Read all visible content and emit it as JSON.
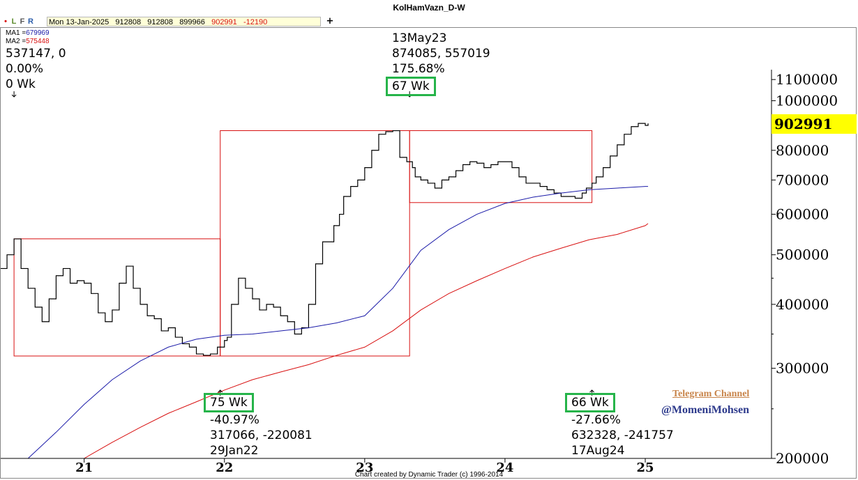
{
  "window": {
    "title": "KolHamVazn_D-W"
  },
  "toolbar": {
    "dot": "•",
    "l": "L",
    "f": "F",
    "r": "R",
    "plus": "+"
  },
  "info_bar": {
    "date": "Mon 13-Jan-2025",
    "open": "912808",
    "high": "912808",
    "low": "899966",
    "close": "902991",
    "change": "-12190"
  },
  "ma": {
    "ma1_label": "MA1 =",
    "ma1_value": "679969",
    "ma2_label": "MA2 =",
    "ma2_value": "575448"
  },
  "colors": {
    "price": "#000000",
    "ma1": "#1a1aa8",
    "ma2": "#d81010",
    "box": "#d81010",
    "highlight": "#26b44a",
    "last_price_flag": "#ffff00"
  },
  "annotations": {
    "top_left": {
      "line1": "537147, 0",
      "line2": "0.00%",
      "line3": "0 Wk"
    },
    "top_mid": {
      "date": "13May23",
      "values": "874085, 557019",
      "percent": "175.68%",
      "weeks": "67 Wk"
    },
    "bottom_left": {
      "weeks": "75 Wk",
      "percent": "-40.97%",
      "values": "317066, -220081",
      "date": "29Jan22"
    },
    "bottom_right": {
      "weeks": "66 Wk",
      "percent": "-27.66%",
      "values": "632328, -241757",
      "date": "17Aug24"
    }
  },
  "last_price": "902991",
  "watermark": {
    "channel": "Telegram Channel",
    "handle": "@MomeniMohsen"
  },
  "footer": {
    "credit": "Chart created by Dynamic Trader  (c)  1996-2014"
  },
  "chart_data": {
    "type": "line",
    "yscale": "log",
    "ylim": [
      200000,
      1150000
    ],
    "xlim": [
      2020.4,
      2025.9
    ],
    "y_ticks": [
      {
        "value": 1100000,
        "label": "1100000"
      },
      {
        "value": 1000000,
        "label": "1000000"
      },
      {
        "value": 800000,
        "label": "800000"
      },
      {
        "value": 700000,
        "label": "700000"
      },
      {
        "value": 600000,
        "label": "600000"
      },
      {
        "value": 500000,
        "label": "500000"
      },
      {
        "value": 400000,
        "label": "400000"
      },
      {
        "value": 300000,
        "label": "300000"
      },
      {
        "value": 200000,
        "label": "200000"
      }
    ],
    "x_ticks": [
      {
        "value": 2021,
        "label": "21"
      },
      {
        "value": 2022,
        "label": "22"
      },
      {
        "value": 2023,
        "label": "23"
      },
      {
        "value": 2024,
        "label": "24"
      },
      {
        "value": 2025,
        "label": "25"
      }
    ],
    "series": [
      {
        "key": "price",
        "x": [
          2020.4,
          2020.45,
          2020.5,
          2020.55,
          2020.6,
          2020.65,
          2020.7,
          2020.75,
          2020.8,
          2020.85,
          2020.9,
          2020.95,
          2021.0,
          2021.05,
          2021.1,
          2021.15,
          2021.2,
          2021.25,
          2021.3,
          2021.35,
          2021.4,
          2021.45,
          2021.5,
          2021.55,
          2021.6,
          2021.65,
          2021.7,
          2021.75,
          2021.8,
          2021.85,
          2021.9,
          2021.95,
          2022.0,
          2022.02,
          2022.05,
          2022.1,
          2022.15,
          2022.2,
          2022.25,
          2022.3,
          2022.35,
          2022.4,
          2022.45,
          2022.5,
          2022.55,
          2022.6,
          2022.65,
          2022.7,
          2022.75,
          2022.78,
          2022.82,
          2022.85,
          2022.9,
          2022.95,
          2023.0,
          2023.05,
          2023.1,
          2023.15,
          2023.2,
          2023.25,
          2023.3,
          2023.34,
          2023.36,
          2023.4,
          2023.45,
          2023.5,
          2023.55,
          2023.6,
          2023.65,
          2023.7,
          2023.75,
          2023.8,
          2023.85,
          2023.9,
          2023.95,
          2024.0,
          2024.05,
          2024.1,
          2024.15,
          2024.2,
          2024.25,
          2024.3,
          2024.35,
          2024.4,
          2024.45,
          2024.5,
          2024.55,
          2024.58,
          2024.62,
          2024.65,
          2024.7,
          2024.75,
          2024.8,
          2024.85,
          2024.9,
          2024.95,
          2025.0,
          2025.02
        ],
        "y": [
          470000,
          500000,
          537000,
          470000,
          430000,
          395000,
          370000,
          410000,
          455000,
          470000,
          440000,
          445000,
          440000,
          420000,
          385000,
          370000,
          390000,
          440000,
          475000,
          430000,
          400000,
          380000,
          375000,
          355000,
          360000,
          345000,
          335000,
          330000,
          320000,
          318000,
          320000,
          330000,
          340000,
          345000,
          400000,
          450000,
          430000,
          410000,
          390000,
          400000,
          395000,
          380000,
          370000,
          350000,
          360000,
          400000,
          480000,
          530000,
          530000,
          570000,
          600000,
          650000,
          680000,
          700000,
          740000,
          800000,
          860000,
          870000,
          874000,
          775000,
          760000,
          740000,
          710000,
          700000,
          690000,
          675000,
          700000,
          710000,
          730000,
          750000,
          760000,
          755000,
          740000,
          750000,
          760000,
          760000,
          740000,
          710000,
          690000,
          690000,
          680000,
          670000,
          660000,
          650000,
          650000,
          645000,
          660000,
          675000,
          690000,
          710000,
          740000,
          780000,
          820000,
          860000,
          890000,
          902991,
          895000,
          902991
        ]
      },
      {
        "key": "ma1",
        "name": "MA1",
        "x": [
          2020.6,
          2020.8,
          2021.0,
          2021.2,
          2021.4,
          2021.6,
          2021.8,
          2022.0,
          2022.2,
          2022.4,
          2022.6,
          2022.8,
          2023.0,
          2023.2,
          2023.4,
          2023.6,
          2023.8,
          2024.0,
          2024.2,
          2024.4,
          2024.6,
          2024.8,
          2025.0,
          2025.02
        ],
        "y": [
          200000,
          225000,
          255000,
          285000,
          310000,
          330000,
          342000,
          348000,
          350000,
          355000,
          360000,
          368000,
          380000,
          430000,
          510000,
          560000,
          600000,
          630000,
          648000,
          660000,
          670000,
          675000,
          680000,
          679969
        ]
      },
      {
        "key": "ma2",
        "name": "MA2",
        "x": [
          2021.0,
          2021.2,
          2021.4,
          2021.6,
          2021.8,
          2022.0,
          2022.2,
          2022.4,
          2022.6,
          2022.8,
          2023.0,
          2023.2,
          2023.4,
          2023.6,
          2023.8,
          2024.0,
          2024.2,
          2024.4,
          2024.6,
          2024.8,
          2025.0,
          2025.02
        ],
        "y": [
          200000,
          215000,
          230000,
          245000,
          258000,
          272000,
          285000,
          295000,
          305000,
          318000,
          330000,
          355000,
          390000,
          420000,
          445000,
          470000,
          495000,
          515000,
          535000,
          548000,
          570000,
          575448
        ]
      }
    ],
    "boxes": [
      {
        "x1": 2020.5,
        "x2": 2021.97,
        "y1": 317066,
        "y2": 537147
      },
      {
        "x1": 2021.97,
        "x2": 2023.32,
        "y1": 317066,
        "y2": 874085
      },
      {
        "x1": 2023.32,
        "x2": 2024.62,
        "y1": 632328,
        "y2": 874085
      }
    ],
    "pivot_markers": [
      {
        "x": 2020.5,
        "y": 537147,
        "dir": "down"
      },
      {
        "x": 2023.32,
        "y": 874085,
        "dir": "down"
      },
      {
        "x": 2021.97,
        "y": 317066,
        "dir": "up"
      },
      {
        "x": 2024.62,
        "y": 632328,
        "dir": "up"
      }
    ]
  }
}
